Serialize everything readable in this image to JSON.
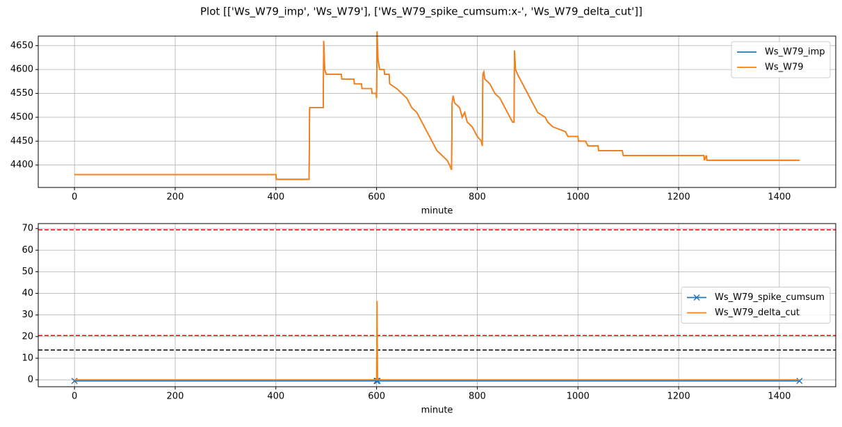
{
  "title": "Plot [['Ws_W79_imp', 'Ws_W79'], ['Ws_W79_spike_cumsum:x-', 'Ws_W79_delta_cut']]",
  "chart_data": [
    {
      "type": "line",
      "xlabel": "minute",
      "x": [
        0,
        400,
        401,
        466,
        467,
        494,
        495,
        497,
        500,
        530,
        531,
        555,
        556,
        570,
        571,
        590,
        591,
        599,
        600,
        601,
        603,
        606,
        615,
        616,
        625,
        626,
        640,
        650,
        660,
        670,
        680,
        690,
        700,
        710,
        720,
        730,
        740,
        745,
        749,
        750,
        752,
        755,
        765,
        770,
        775,
        780,
        790,
        800,
        808,
        810,
        811,
        813,
        815,
        825,
        835,
        845,
        855,
        865,
        870,
        873,
        874,
        876,
        880,
        890,
        900,
        910,
        920,
        935,
        940,
        950,
        975,
        980,
        1000,
        1001,
        1015,
        1020,
        1040,
        1041,
        1088,
        1090,
        1250,
        1251,
        1255,
        1256,
        1440
      ],
      "series": [
        {
          "name": "Ws_W79_imp",
          "color": "#1f77b4",
          "values": [
            4380,
            4380,
            4370,
            4370,
            4520,
            4520,
            4660,
            4600,
            4590,
            4590,
            4580,
            4580,
            4570,
            4570,
            4560,
            4560,
            4550,
            4550,
            4540,
            4680,
            4620,
            4600,
            4600,
            4590,
            4590,
            4570,
            4560,
            4550,
            4540,
            4520,
            4510,
            4490,
            4470,
            4450,
            4430,
            4420,
            4410,
            4400,
            4390,
            4530,
            4545,
            4530,
            4520,
            4500,
            4510,
            4490,
            4480,
            4460,
            4450,
            4440,
            4590,
            4595,
            4580,
            4570,
            4550,
            4540,
            4520,
            4500,
            4490,
            4490,
            4640,
            4600,
            4590,
            4570,
            4550,
            4530,
            4510,
            4500,
            4490,
            4480,
            4470,
            4460,
            4460,
            4450,
            4450,
            4440,
            4440,
            4430,
            4430,
            4420,
            4420,
            4410,
            4420,
            4410,
            4410
          ]
        },
        {
          "name": "Ws_W79",
          "color": "#ff7f0e",
          "values": [
            4380,
            4380,
            4370,
            4370,
            4520,
            4520,
            4660,
            4600,
            4590,
            4590,
            4580,
            4580,
            4570,
            4570,
            4560,
            4560,
            4550,
            4550,
            4540,
            4680,
            4620,
            4600,
            4600,
            4590,
            4590,
            4570,
            4560,
            4550,
            4540,
            4520,
            4510,
            4490,
            4470,
            4450,
            4430,
            4420,
            4410,
            4400,
            4390,
            4530,
            4545,
            4530,
            4520,
            4500,
            4510,
            4490,
            4480,
            4460,
            4450,
            4440,
            4590,
            4595,
            4580,
            4570,
            4550,
            4540,
            4520,
            4500,
            4490,
            4490,
            4640,
            4600,
            4590,
            4570,
            4550,
            4530,
            4510,
            4500,
            4490,
            4480,
            4470,
            4460,
            4460,
            4450,
            4450,
            4440,
            4440,
            4430,
            4430,
            4420,
            4420,
            4410,
            4420,
            4410,
            4410
          ]
        }
      ],
      "xlim": [
        -72,
        1512
      ],
      "ylim": [
        4353,
        4670
      ],
      "xticks": [
        0,
        200,
        400,
        600,
        800,
        1000,
        1200,
        1400
      ],
      "yticks": [
        4400,
        4450,
        4500,
        4550,
        4600,
        4650
      ],
      "grid": true,
      "legend": "upper-right"
    },
    {
      "type": "line",
      "xlabel": "minute",
      "x": [
        0,
        600,
        601,
        602,
        1440
      ],
      "series": [
        {
          "name": "Ws_W79_spike_cumsum",
          "color": "#1f77b4",
          "marker": "x",
          "values": [
            -0.5,
            -0.5,
            -0.5,
            -0.5,
            -0.5
          ]
        },
        {
          "name": "Ws_W79_delta_cut",
          "color": "#ff7f0e",
          "values": [
            0,
            0,
            36.5,
            0,
            0
          ]
        }
      ],
      "hlines": [
        {
          "value": 69.4,
          "color": "red"
        },
        {
          "value": 20.5,
          "color": "red"
        },
        {
          "value": 13.8,
          "color": "black"
        }
      ],
      "xlim": [
        -72,
        1512
      ],
      "ylim": [
        -3.2,
        72.3
      ],
      "xticks": [
        0,
        200,
        400,
        600,
        800,
        1000,
        1200,
        1400
      ],
      "yticks": [
        0,
        10,
        20,
        30,
        40,
        50,
        60,
        70
      ],
      "grid": true,
      "legend": "center-right"
    }
  ]
}
